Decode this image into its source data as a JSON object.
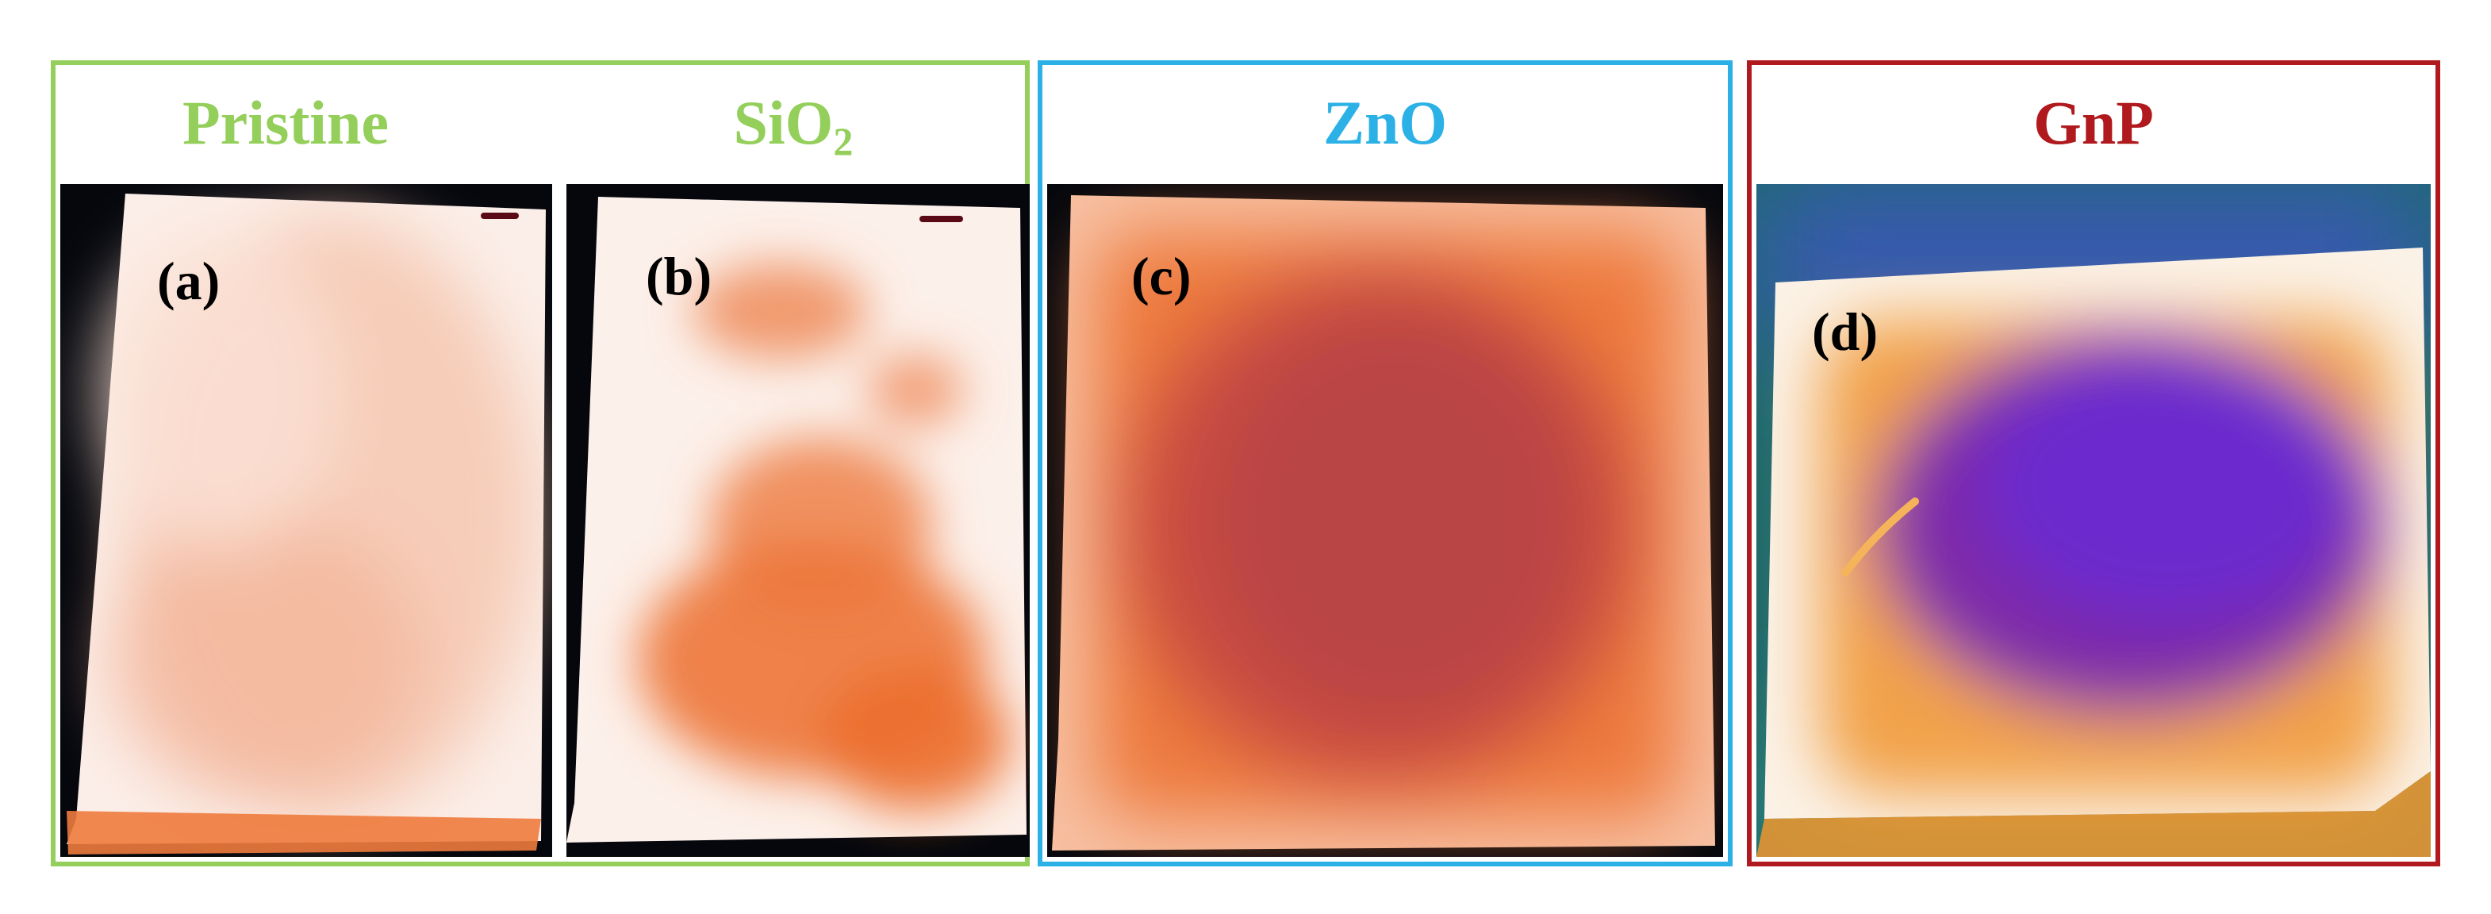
{
  "colors": {
    "green": "#93cf5a",
    "blue": "#2cb1e6",
    "red": "#b0191d"
  },
  "panels": {
    "a": {
      "title": "Pristine",
      "label": "(a)"
    },
    "b": {
      "title": "SiO",
      "title_sub": "2",
      "label": "(b)"
    },
    "c": {
      "title": "ZnO",
      "label": "(c)"
    },
    "d": {
      "title": "GnP",
      "label": "(d)"
    }
  }
}
